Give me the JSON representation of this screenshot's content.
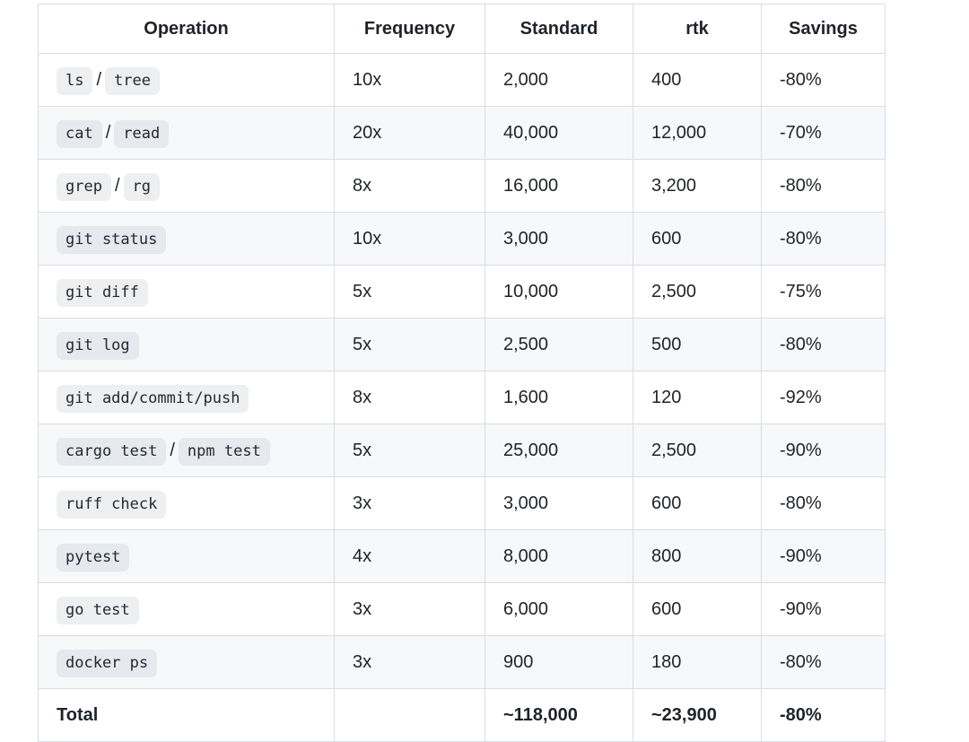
{
  "colors": {
    "background": "#ffffff",
    "stripe_row": "#f6f8fa",
    "border": "#d9dde1",
    "text": "#1f2328",
    "code_badge_bg": "rgba(175,184,193,0.22)"
  },
  "table": {
    "columns": [
      {
        "key": "operation",
        "label": "Operation"
      },
      {
        "key": "frequency",
        "label": "Frequency"
      },
      {
        "key": "standard",
        "label": "Standard"
      },
      {
        "key": "rtk",
        "label": "rtk"
      },
      {
        "key": "savings",
        "label": "Savings"
      }
    ],
    "rows": [
      {
        "operation": [
          {
            "code": "ls"
          },
          {
            "text": "/"
          },
          {
            "code": "tree"
          }
        ],
        "frequency": "10x",
        "standard": "2,000",
        "rtk": "400",
        "savings": "-80%"
      },
      {
        "operation": [
          {
            "code": "cat"
          },
          {
            "text": "/"
          },
          {
            "code": "read"
          }
        ],
        "frequency": "20x",
        "standard": "40,000",
        "rtk": "12,000",
        "savings": "-70%"
      },
      {
        "operation": [
          {
            "code": "grep"
          },
          {
            "text": "/"
          },
          {
            "code": "rg"
          }
        ],
        "frequency": "8x",
        "standard": "16,000",
        "rtk": "3,200",
        "savings": "-80%"
      },
      {
        "operation": [
          {
            "code": "git status"
          }
        ],
        "frequency": "10x",
        "standard": "3,000",
        "rtk": "600",
        "savings": "-80%"
      },
      {
        "operation": [
          {
            "code": "git diff"
          }
        ],
        "frequency": "5x",
        "standard": "10,000",
        "rtk": "2,500",
        "savings": "-75%"
      },
      {
        "operation": [
          {
            "code": "git log"
          }
        ],
        "frequency": "5x",
        "standard": "2,500",
        "rtk": "500",
        "savings": "-80%"
      },
      {
        "operation": [
          {
            "code": "git add/commit/push"
          }
        ],
        "frequency": "8x",
        "standard": "1,600",
        "rtk": "120",
        "savings": "-92%"
      },
      {
        "operation": [
          {
            "code": "cargo test"
          },
          {
            "text": "/"
          },
          {
            "code": "npm test"
          }
        ],
        "frequency": "5x",
        "standard": "25,000",
        "rtk": "2,500",
        "savings": "-90%"
      },
      {
        "operation": [
          {
            "code": "ruff check"
          }
        ],
        "frequency": "3x",
        "standard": "3,000",
        "rtk": "600",
        "savings": "-80%"
      },
      {
        "operation": [
          {
            "code": "pytest"
          }
        ],
        "frequency": "4x",
        "standard": "8,000",
        "rtk": "800",
        "savings": "-90%"
      },
      {
        "operation": [
          {
            "code": "go test"
          }
        ],
        "frequency": "3x",
        "standard": "6,000",
        "rtk": "600",
        "savings": "-90%"
      },
      {
        "operation": [
          {
            "code": "docker ps"
          }
        ],
        "frequency": "3x",
        "standard": "900",
        "rtk": "180",
        "savings": "-80%"
      },
      {
        "total": true,
        "operation": [
          {
            "text": "Total"
          }
        ],
        "frequency": "",
        "standard": "~118,000",
        "rtk": "~23,900",
        "savings": "-80%"
      }
    ]
  }
}
